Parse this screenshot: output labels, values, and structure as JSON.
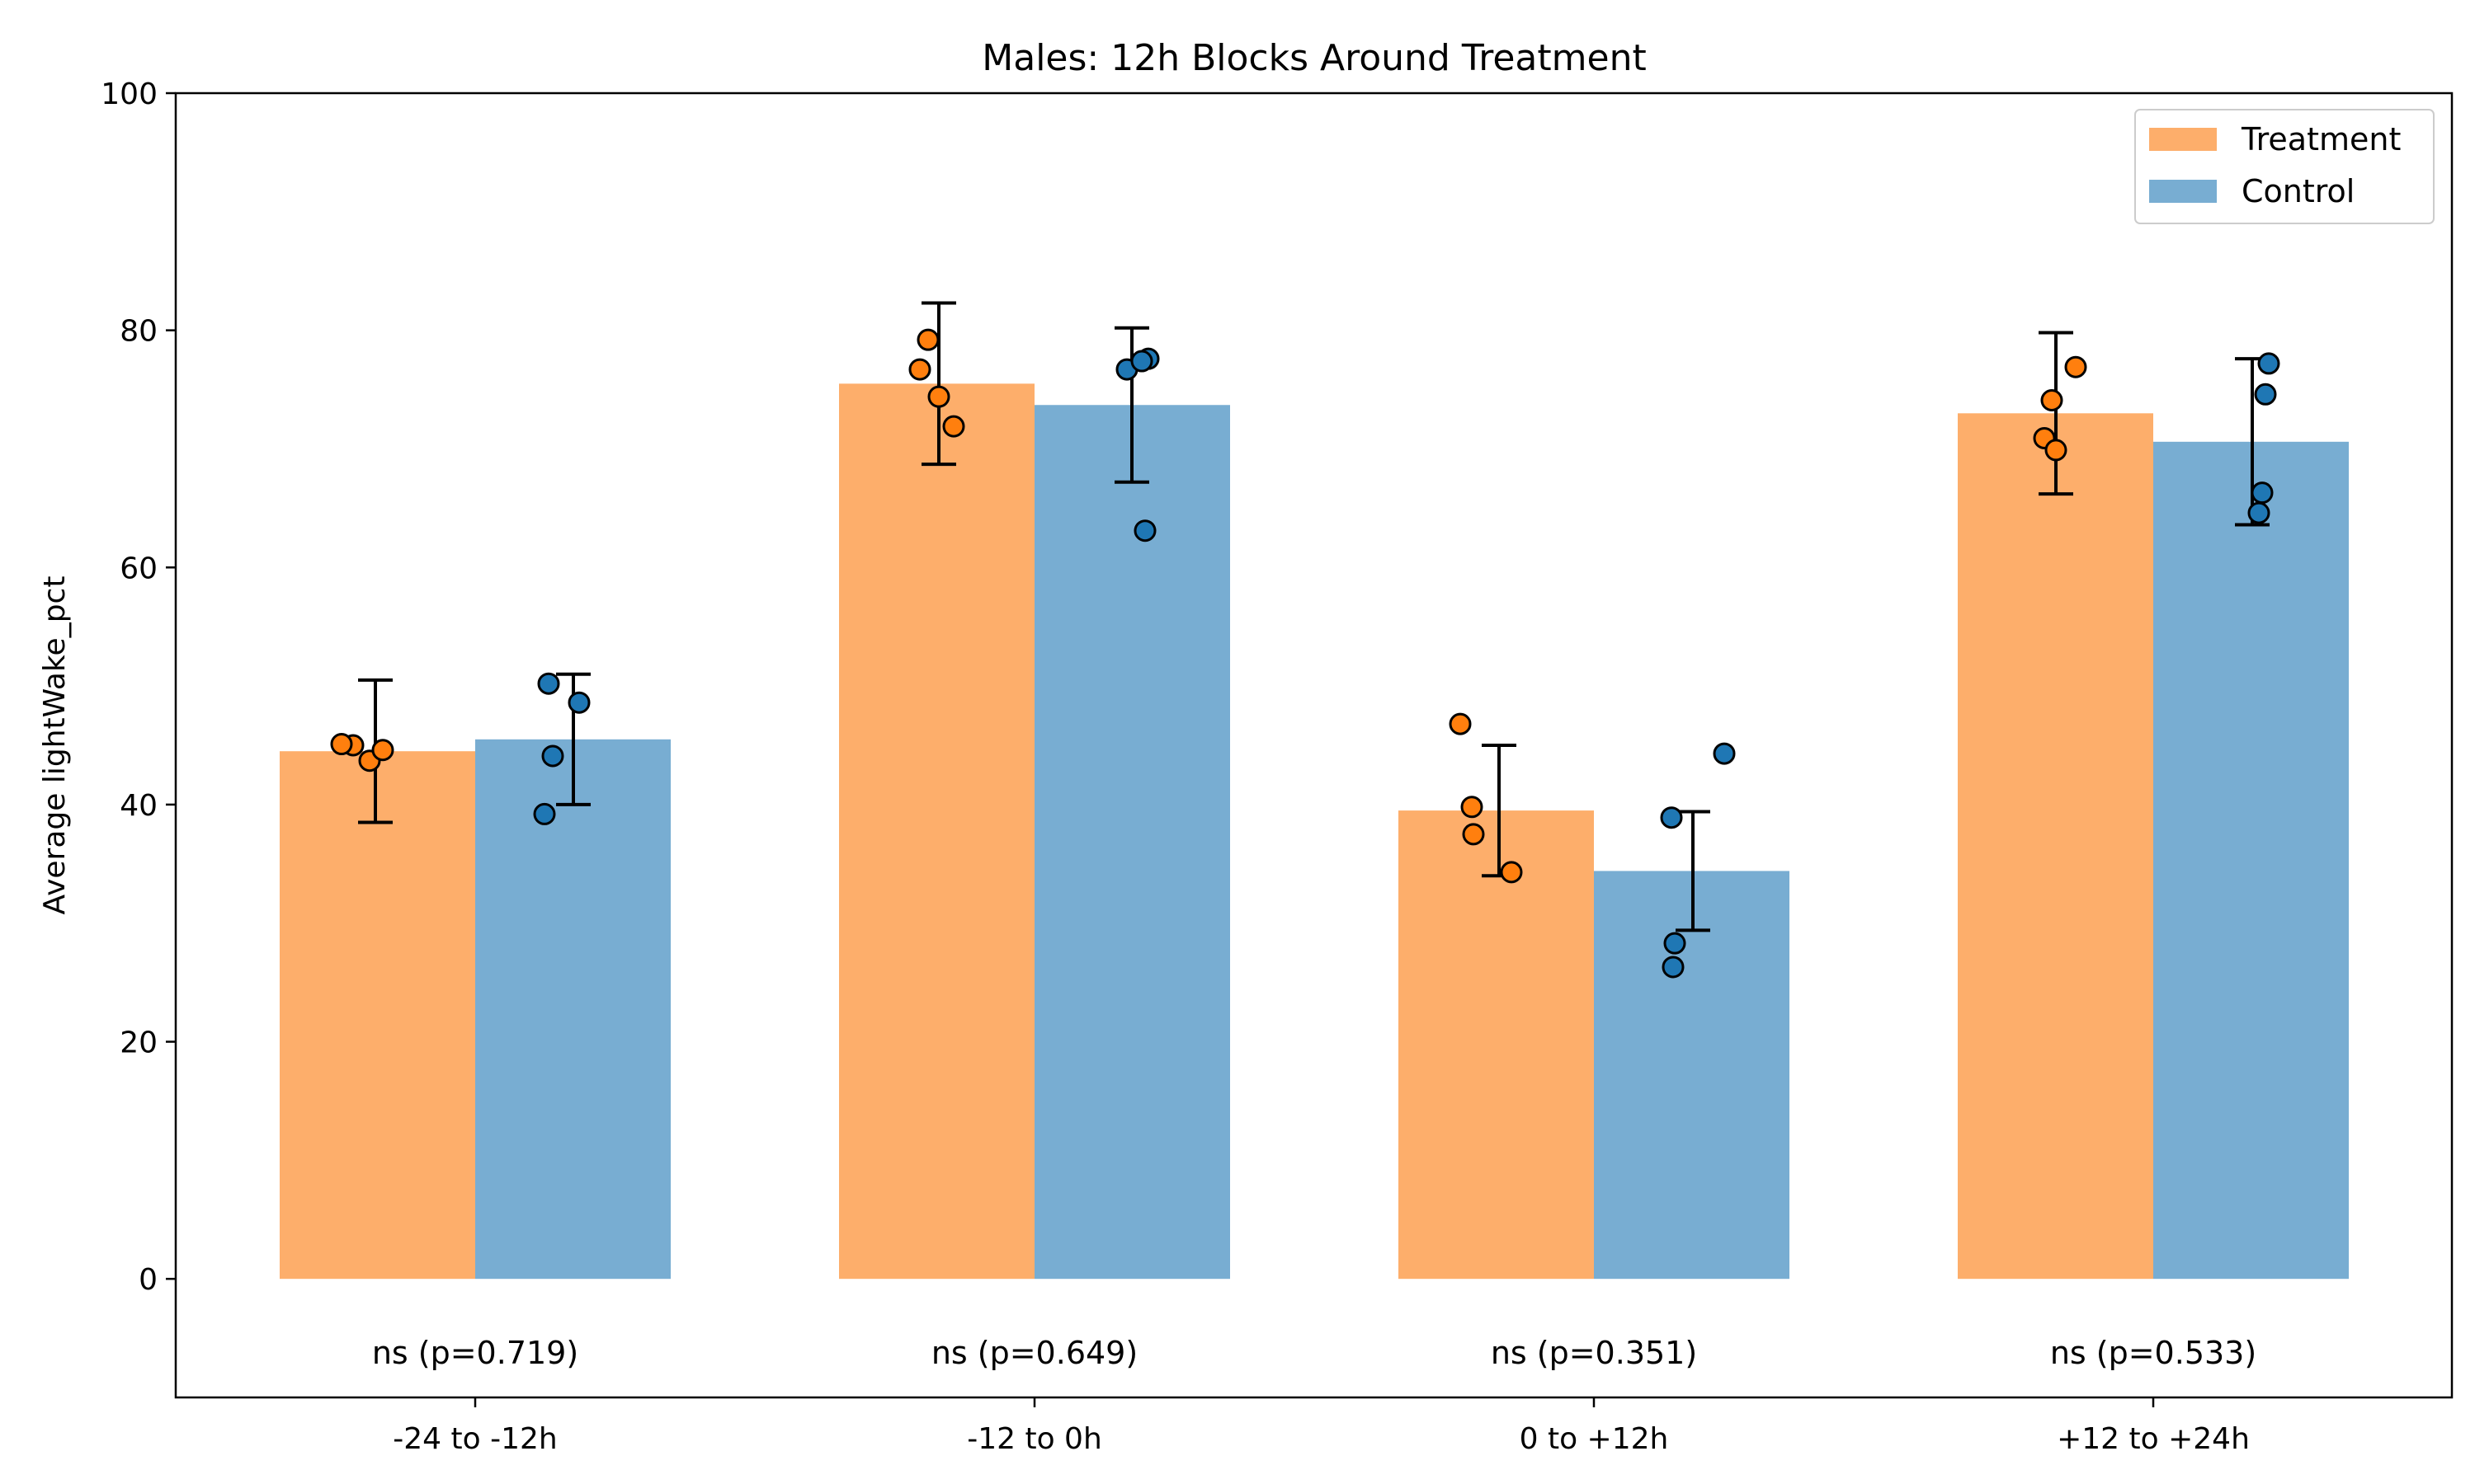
{
  "chart_data": {
    "type": "bar",
    "title": "Males: 12h Blocks Around Treatment",
    "xlabel": "",
    "ylabel": "Average lightWake_pct",
    "ylim": [
      -10,
      100
    ],
    "yticks": [
      0,
      20,
      40,
      60,
      80,
      100
    ],
    "categories": [
      "-24 to -12h",
      "-12 to 0h",
      "0 to +12h",
      "+12 to +24h"
    ],
    "annotations": [
      "ns (p=0.719)",
      "ns (p=0.649)",
      "ns (p=0.351)",
      "ns (p=0.533)"
    ],
    "legend_position": "top-right",
    "grid": false,
    "series": [
      {
        "name": "Treatment",
        "color": "#fdae6b",
        "point_color": "#ff7f0e",
        "values": [
          44.5,
          75.5,
          39.5,
          73.0
        ],
        "errors": [
          6.0,
          6.8,
          5.5,
          6.8
        ],
        "points": [
          [
            45.0,
            43.7,
            44.6,
            45.1
          ],
          [
            79.2,
            76.7,
            74.4,
            71.9
          ],
          [
            46.8,
            39.8,
            37.5,
            34.3
          ],
          [
            74.1,
            70.9,
            69.9,
            76.9
          ]
        ]
      },
      {
        "name": "Control",
        "color": "#78add2",
        "point_color": "#1f77b4",
        "values": [
          45.5,
          73.7,
          34.4,
          70.6
        ],
        "errors": [
          5.5,
          6.5,
          5.0,
          7.0
        ],
        "points": [
          [
            50.2,
            39.2,
            44.1,
            48.6
          ],
          [
            76.7,
            77.6,
            77.4,
            63.1
          ],
          [
            44.3,
            38.9,
            28.3,
            26.3
          ],
          [
            64.6,
            66.3,
            74.6,
            77.2
          ]
        ]
      }
    ]
  }
}
